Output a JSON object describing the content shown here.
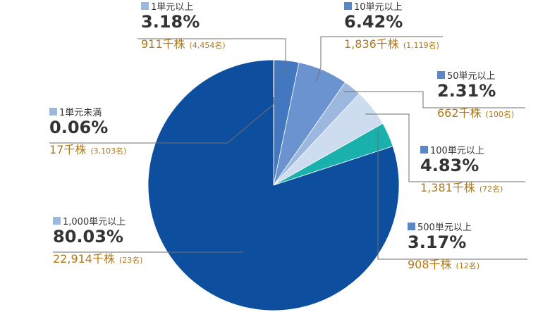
{
  "chart_data": {
    "type": "pie",
    "slices": [
      {
        "label": "1単元未満",
        "value": 0.06,
        "percent_text": "0.06%",
        "shares": "17千株",
        "holders": "(3,103名)",
        "color": "#1a2ca8"
      },
      {
        "label": "1単元以上",
        "value": 3.18,
        "percent_text": "3.18%",
        "shares": "911千株",
        "holders": "(4,454名)",
        "color": "#4378c0"
      },
      {
        "label": "10単元以上",
        "value": 6.42,
        "percent_text": "6.42%",
        "shares": "1,836千株",
        "holders": "(1,119名)",
        "color": "#6b93cf"
      },
      {
        "label": "50単元以上",
        "value": 2.31,
        "percent_text": "2.31%",
        "shares": "662千株",
        "holders": "(100名)",
        "color": "#9db8df"
      },
      {
        "label": "100単元以上",
        "value": 4.83,
        "percent_text": "4.83%",
        "shares": "1,381千株",
        "holders": "(72名)",
        "color": "#cddcee"
      },
      {
        "label": "500単元以上",
        "value": 3.17,
        "percent_text": "3.17%",
        "shares": "908千株",
        "holders": "(12名)",
        "color": "#1ab0ac"
      },
      {
        "label": "1,000単元以上",
        "value": 80.03,
        "percent_text": "80.03%",
        "shares": "22,914千株",
        "holders": "(23名)",
        "color": "#0d4f9e"
      }
    ]
  }
}
